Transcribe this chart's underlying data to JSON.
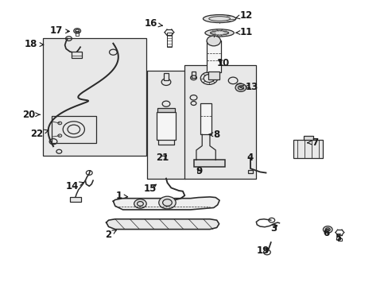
{
  "background_color": "#ffffff",
  "figsize": [
    4.89,
    3.6
  ],
  "dpi": 100,
  "font_size": 8.5,
  "font_color": "#1a1a1a",
  "line_color": "#2a2a2a",
  "line_width": 0.9,
  "label_positions": {
    "17": [
      0.145,
      0.895,
      0.175,
      0.895
    ],
    "18": [
      0.078,
      0.845,
      0.115,
      0.845
    ],
    "20": [
      0.072,
      0.6,
      0.108,
      0.6
    ],
    "16": [
      0.39,
      0.92,
      0.415,
      0.92
    ],
    "15": [
      0.385,
      0.34,
      0.408,
      0.37
    ],
    "12": [
      0.635,
      0.952,
      0.598,
      0.952
    ],
    "11": [
      0.635,
      0.89,
      0.598,
      0.89
    ],
    "10": [
      0.57,
      0.78,
      0.543,
      0.8
    ],
    "13": [
      0.645,
      0.695,
      0.607,
      0.695
    ],
    "8": [
      0.558,
      0.53,
      0.527,
      0.53
    ],
    "9": [
      0.515,
      0.4,
      0.504,
      0.418
    ],
    "7": [
      0.81,
      0.5,
      0.782,
      0.5
    ],
    "4": [
      0.644,
      0.448,
      0.64,
      0.432
    ],
    "22": [
      0.092,
      0.53,
      0.12,
      0.53
    ],
    "14": [
      0.185,
      0.345,
      0.213,
      0.36
    ],
    "21": [
      0.42,
      0.445,
      0.43,
      0.462
    ],
    "1": [
      0.305,
      0.31,
      0.33,
      0.31
    ],
    "2": [
      0.278,
      0.175,
      0.308,
      0.195
    ],
    "19": [
      0.68,
      0.118,
      0.7,
      0.135
    ],
    "3": [
      0.708,
      0.2,
      0.724,
      0.215
    ],
    "6": [
      0.842,
      0.178,
      0.852,
      0.192
    ],
    "5": [
      0.872,
      0.162,
      0.868,
      0.178
    ]
  }
}
